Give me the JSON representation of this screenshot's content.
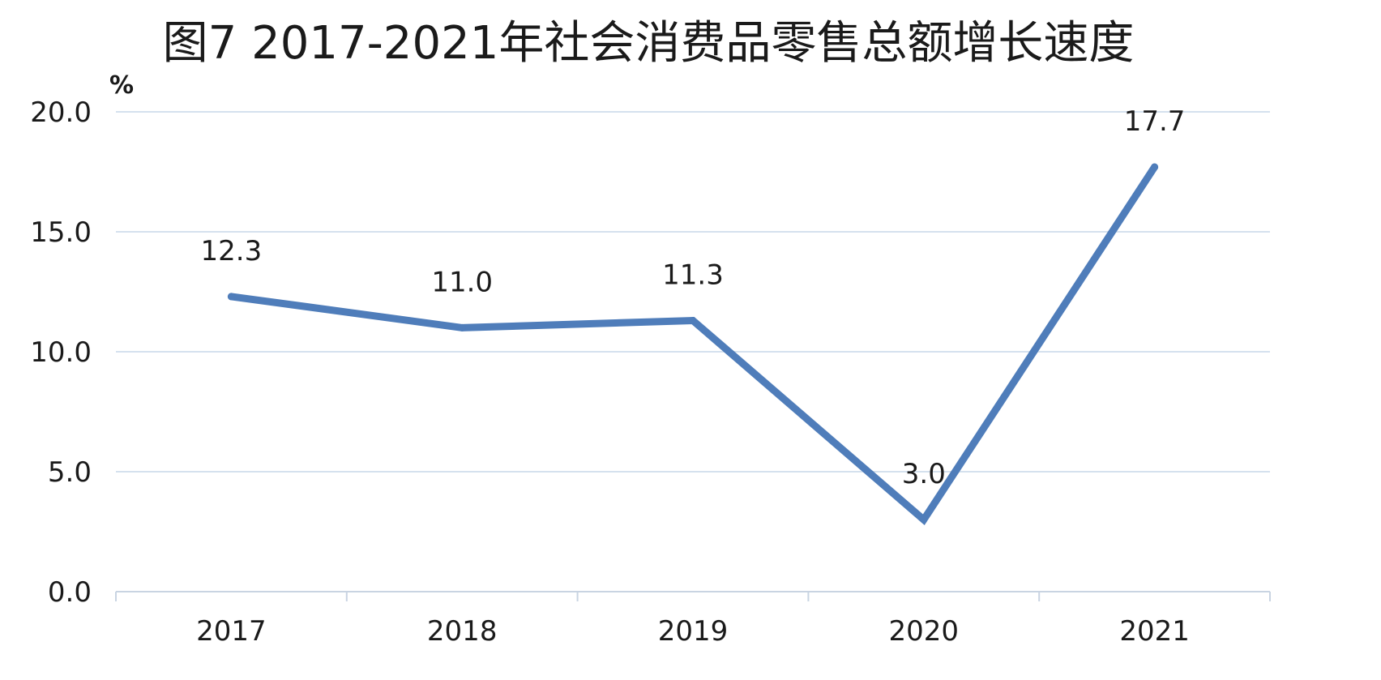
{
  "chart_data": {
    "type": "line",
    "title": "图7   2017-2021年社会消费品零售总额增长速度",
    "xlabel": "",
    "ylabel": "%",
    "categories": [
      "2017",
      "2018",
      "2019",
      "2020",
      "2021"
    ],
    "series": [
      {
        "values": [
          12.3,
          11.0,
          11.3,
          3.0,
          17.7
        ],
        "color": "#4f7dba"
      }
    ],
    "data_labels": [
      "12.3",
      "11.0",
      "11.3",
      "3.0",
      "17.7"
    ],
    "ylim": [
      0,
      20
    ],
    "yticks": [
      0,
      5,
      10,
      15,
      20
    ],
    "ytick_labels": [
      "0.0",
      "5.0",
      "10.0",
      "15.0",
      "20.0"
    ],
    "grid": true,
    "legend": "none"
  }
}
